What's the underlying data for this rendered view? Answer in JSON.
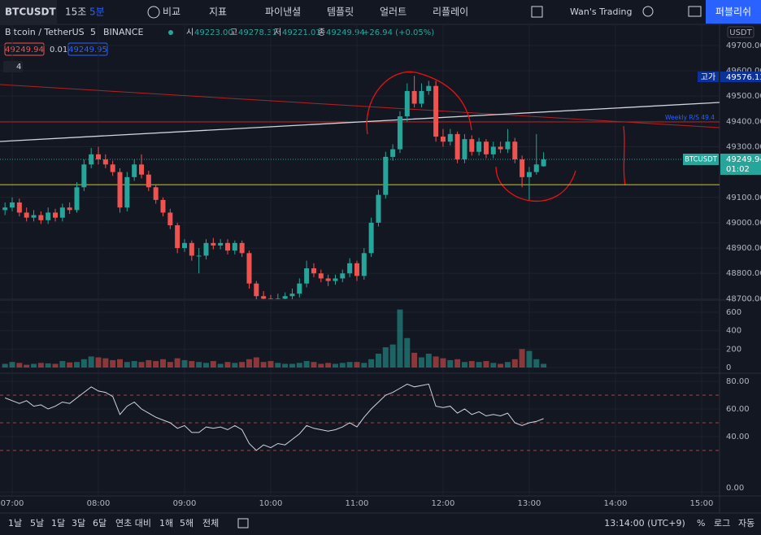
{
  "toolbar": {
    "symbol": "BTCUSDT",
    "intervals": [
      "15조",
      "5분"
    ],
    "compare": "비교",
    "indicators": "지표",
    "financials": "파이낸셜",
    "templates": "템플릿",
    "alerts": "얼러트",
    "replay": "리플레이",
    "layout": "Wan's Trading",
    "publish": "퍼블리쉬"
  },
  "legend": {
    "symbol": "Bitcoin / TetherUS",
    "interval": "5",
    "exchange": "BINANCE",
    "o_label": "시",
    "o": "49223.00",
    "h_label": "고",
    "h": "49278.31",
    "l_label": "저",
    "l": "49221.01",
    "c_label": "종",
    "c": "49249.94",
    "change": "+26.94 (+0.05%)",
    "bid": "49249.94",
    "spread": "0.01",
    "ask": "49249.95",
    "indicators": "4"
  },
  "price_axis": {
    "currency": "USDT",
    "high_label": "고가",
    "high": "49576.13",
    "symbol_tag": "BTCUSDT",
    "last": "49249.94",
    "countdown": "01:02",
    "drawing_label": "Weekly R/S 49.4"
  },
  "bottom_bar": {
    "ranges": [
      "1날",
      "5날",
      "1달",
      "3달",
      "6달",
      "연초 대비",
      "1해",
      "5해",
      "전체"
    ],
    "clock": "13:14:00 (UTC+9)",
    "percent": "%",
    "log": "로그",
    "auto": "자동"
  },
  "chart_data": [
    {
      "type": "candlestick",
      "up_color": "#26a69a",
      "down_color": "#ef5350",
      "x": [
        415,
        420,
        425,
        430,
        435,
        440,
        445,
        450,
        455,
        460,
        465,
        470,
        475,
        480,
        485,
        490,
        495,
        500,
        505,
        510,
        515,
        520,
        525,
        530,
        535,
        540,
        545,
        550,
        555,
        560,
        565,
        570,
        575,
        580,
        585,
        590,
        595,
        600,
        605,
        610,
        615,
        620,
        625,
        630,
        635,
        640,
        645,
        650,
        655,
        660,
        665,
        670,
        675,
        680,
        685,
        690,
        695,
        700,
        705,
        710,
        715,
        720,
        725,
        730,
        735,
        740,
        745,
        750,
        755,
        760,
        765,
        770,
        775,
        780,
        785,
        790
      ],
      "open": [
        49050,
        49060,
        49080,
        49040,
        49020,
        49030,
        49010,
        49040,
        49020,
        49060,
        49050,
        49140,
        49230,
        49270,
        49250,
        49230,
        49200,
        49060,
        49180,
        49230,
        49190,
        49140,
        49090,
        49040,
        48990,
        48900,
        48920,
        48870,
        48870,
        48920,
        48910,
        48920,
        48890,
        48920,
        48880,
        48760,
        48710,
        48700,
        48690,
        48700,
        48710,
        48720,
        48760,
        48820,
        48800,
        48780,
        48770,
        48780,
        48800,
        48840,
        48790,
        48880,
        49000,
        49110,
        49260,
        49290,
        49420,
        49520,
        49470,
        49520,
        49540,
        49340,
        49320,
        49350,
        49250,
        49330,
        49280,
        49320,
        49270,
        49300,
        49290,
        49320,
        49250,
        49180,
        49200,
        49223
      ],
      "high": [
        49080,
        49100,
        49095,
        49060,
        49050,
        49045,
        49060,
        49055,
        49075,
        49080,
        49160,
        49250,
        49295,
        49300,
        49270,
        49245,
        49215,
        49200,
        49250,
        49270,
        49205,
        49150,
        49100,
        49055,
        49000,
        48935,
        48930,
        48900,
        48935,
        48940,
        48935,
        48935,
        48930,
        48930,
        48890,
        48770,
        48730,
        48715,
        48720,
        48725,
        48740,
        48780,
        48850,
        48840,
        48815,
        48795,
        48795,
        48815,
        48860,
        48850,
        48900,
        49020,
        49130,
        49280,
        49310,
        49440,
        49550,
        49580,
        49550,
        49560,
        49560,
        49370,
        49370,
        49360,
        49350,
        49345,
        49335,
        49330,
        49320,
        49320,
        49370,
        49335,
        49265,
        49220,
        49350,
        49278.31
      ],
      "low": [
        49030,
        49045,
        49025,
        49005,
        49005,
        48995,
        48995,
        49005,
        49005,
        49035,
        49040,
        49125,
        49215,
        49230,
        49215,
        49185,
        49040,
        49045,
        49165,
        49175,
        49125,
        49075,
        49025,
        48975,
        48880,
        48885,
        48850,
        48800,
        48855,
        48895,
        48895,
        48875,
        48875,
        48865,
        48740,
        48690,
        48680,
        48670,
        48675,
        48685,
        48695,
        48705,
        48745,
        48785,
        48765,
        48750,
        48755,
        48765,
        48785,
        48770,
        48775,
        48865,
        48985,
        49095,
        49245,
        49275,
        49400,
        49455,
        49455,
        49505,
        49320,
        49300,
        49305,
        49235,
        49235,
        49265,
        49265,
        49255,
        49255,
        49275,
        49275,
        49235,
        49140,
        49090,
        49190,
        49221.01
      ],
      "close": [
        49060,
        49080,
        49040,
        49020,
        49030,
        49010,
        49040,
        49020,
        49060,
        49050,
        49140,
        49230,
        49270,
        49250,
        49230,
        49200,
        49060,
        49180,
        49230,
        49190,
        49140,
        49090,
        49040,
        48990,
        48900,
        48920,
        48870,
        48870,
        48920,
        48910,
        48920,
        48890,
        48920,
        48880,
        48760,
        48710,
        48700,
        48690,
        48700,
        48710,
        48720,
        48760,
        48820,
        48800,
        48780,
        48770,
        48780,
        48800,
        48840,
        48790,
        48880,
        49000,
        49110,
        49260,
        49290,
        49420,
        49520,
        49470,
        49520,
        49540,
        49340,
        49320,
        49350,
        49250,
        49330,
        49280,
        49320,
        49270,
        49300,
        49290,
        49320,
        49250,
        49180,
        49200,
        49230,
        49249.94
      ],
      "xlim": [
        411.5,
        912.5
      ],
      "ylim": [
        48698,
        49783
      ],
      "xticks": [
        {
          "value": 420,
          "label": "07:00"
        },
        {
          "value": 480,
          "label": "08:00"
        },
        {
          "value": 540,
          "label": "09:00"
        },
        {
          "value": 600,
          "label": "10:00"
        },
        {
          "value": 660,
          "label": "11:00"
        },
        {
          "value": 720,
          "label": "12:00"
        },
        {
          "value": 780,
          "label": "13:00"
        },
        {
          "value": 840,
          "label": "14:00"
        },
        {
          "value": 900,
          "label": "15:00"
        }
      ],
      "yticks": [
        {
          "value": 48700,
          "label": "48700.00"
        },
        {
          "value": 48800,
          "label": "48800.00"
        },
        {
          "value": 48900,
          "label": "48900.00"
        },
        {
          "value": 49000,
          "label": "49000.00"
        },
        {
          "value": 49100,
          "label": "49100.00"
        },
        {
          "value": 49300,
          "label": "49300.00"
        },
        {
          "value": 49400,
          "label": "49400.00"
        },
        {
          "value": 49500,
          "label": "49500.00"
        },
        {
          "value": 49600,
          "label": "49600.00"
        },
        {
          "value": 49700,
          "label": "49700.00"
        }
      ],
      "hline": 49150,
      "hline_color": "#c8b400"
    },
    {
      "type": "bar",
      "values": [
        40,
        60,
        50,
        30,
        40,
        50,
        45,
        40,
        70,
        55,
        60,
        90,
        120,
        110,
        100,
        80,
        90,
        60,
        70,
        60,
        80,
        70,
        90,
        60,
        100,
        80,
        70,
        60,
        50,
        70,
        40,
        60,
        50,
        60,
        90,
        110,
        60,
        70,
        50,
        40,
        40,
        50,
        70,
        60,
        40,
        50,
        40,
        50,
        60,
        60,
        50,
        90,
        150,
        220,
        250,
        630,
        320,
        160,
        110,
        150,
        120,
        100,
        80,
        90,
        60,
        70,
        60,
        70,
        50,
        40,
        60,
        90,
        200,
        180,
        90,
        40
      ],
      "ylim": [
        -53,
        724
      ],
      "yticks": [
        0,
        200,
        400,
        600
      ]
    },
    {
      "type": "line",
      "color": "#d1d4dc",
      "values": [
        68,
        66,
        64,
        66,
        62,
        63,
        60,
        62,
        65,
        64,
        68,
        72,
        76,
        73,
        72,
        69,
        56,
        62,
        65,
        60,
        57,
        54,
        52,
        50,
        46,
        48,
        43,
        43,
        47,
        46,
        47,
        45,
        48,
        45,
        35,
        30,
        34,
        32,
        35,
        34,
        38,
        42,
        48,
        46,
        45,
        44,
        45,
        47,
        50,
        47,
        54,
        60,
        65,
        70,
        72,
        75,
        78,
        76,
        77,
        78,
        62,
        61,
        62,
        57,
        60,
        56,
        58,
        55,
        56,
        55,
        57,
        50,
        48,
        50,
        51,
        53
      ],
      "ylim": [
        -2.9,
        85.3
      ],
      "yticks": [
        {
          "value": 0,
          "label": "0.00"
        },
        {
          "value": 40,
          "label": "40.00"
        },
        {
          "value": 60,
          "label": "60.00"
        },
        {
          "value": 80,
          "label": "80.00"
        }
      ],
      "levels": [
        70,
        50,
        30
      ],
      "level_color": "#ef5350"
    }
  ]
}
